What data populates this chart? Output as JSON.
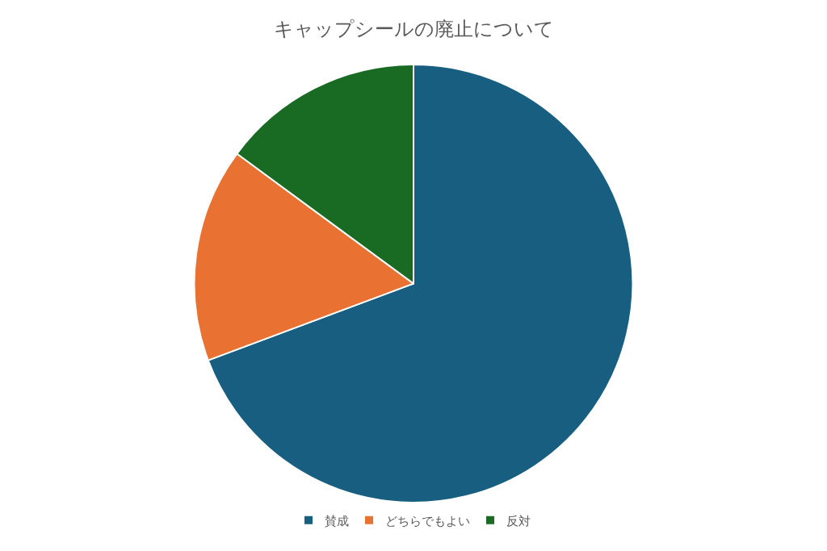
{
  "chart_data": {
    "type": "pie",
    "title": "キャップシールの廃止について",
    "categories": [
      "賛成",
      "どちらでもよい",
      "反対"
    ],
    "values": [
      69.3,
      15.8,
      14.9
    ],
    "colors": [
      "#175e80",
      "#e97132",
      "#196b24"
    ],
    "legend": "bottom"
  }
}
